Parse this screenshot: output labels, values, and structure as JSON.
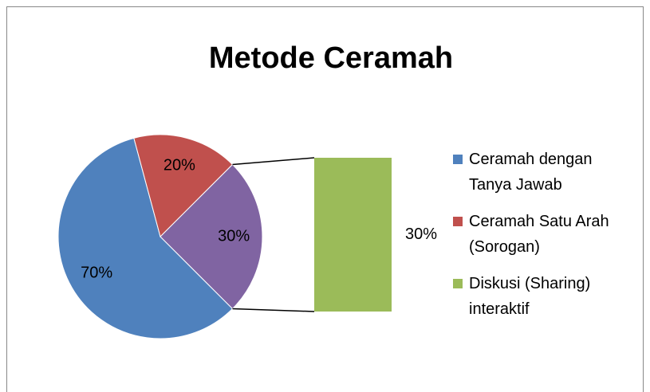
{
  "chart_data": {
    "type": "bar-of-pie",
    "title": "Metode Ceramah",
    "categories": [
      "Ceramah dengan Tanya Jawab",
      "Ceramah Satu Arah (Sorogan)",
      "Diskusi (Sharing) interaktif"
    ],
    "values": [
      70,
      20,
      30
    ],
    "value_labels": [
      "70%",
      "20%",
      "30%"
    ],
    "colors": [
      "#4f81bd",
      "#c0504d",
      "#9bbb59"
    ],
    "secondary": [
      2
    ],
    "other": {
      "value": 30,
      "value_label": "30%",
      "color": "#8064a2"
    },
    "legend": "right"
  }
}
